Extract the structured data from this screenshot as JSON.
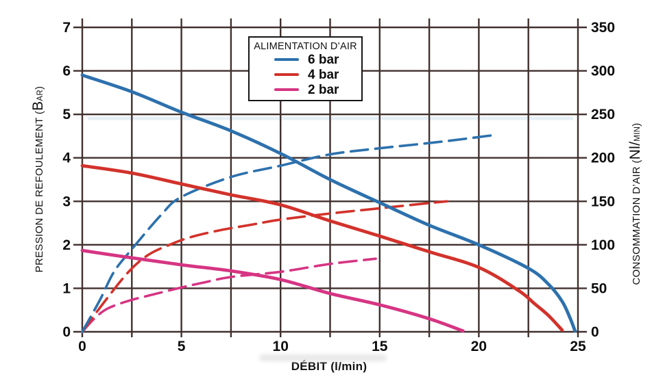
{
  "legend": {
    "title": "ALIMENTATION D’AIR",
    "items": [
      {
        "label": "6 bar",
        "color": "#2d71ad"
      },
      {
        "label": "4 bar",
        "color": "#d2322b"
      },
      {
        "label": "2 bar",
        "color": "#d63583"
      }
    ]
  },
  "axes": {
    "x": {
      "title": "DÉBIT (l/min)",
      "ticks": [
        0,
        5,
        10,
        15,
        20,
        25
      ],
      "minor_step": 2.5,
      "range": [
        0,
        25
      ]
    },
    "left": {
      "title_parts": [
        "PRESSION DE REFOULEMENT (",
        "B",
        "AR",
        ")"
      ],
      "ticks": [
        0,
        1,
        2,
        3,
        4,
        5,
        6,
        7
      ],
      "range": [
        0,
        7
      ]
    },
    "right": {
      "title_parts": [
        "CONSOMMATION D’AIR (",
        "Nl/",
        "MIN",
        ")"
      ],
      "ticks": [
        0,
        50,
        100,
        150,
        200,
        250,
        300,
        350
      ],
      "range": [
        0,
        350
      ]
    }
  },
  "grid_color": "#40302e",
  "chart_data": {
    "type": "line",
    "title": "",
    "xlabel": "DÉBIT (l/min)",
    "ylabel_left": "PRESSION DE REFOULEMENT (BAR)",
    "ylabel_right": "CONSOMMATION D’AIR (Nl/MIN)",
    "xlim": [
      0,
      25
    ],
    "ylim_left": [
      0,
      7
    ],
    "ylim_right": [
      0,
      350
    ],
    "grid": true,
    "legend_position": "top-center",
    "series": [
      {
        "id": "2bar-air",
        "name": "2 bar",
        "quantity": "consommation d'air",
        "unit": "Nl/min",
        "axis": "right",
        "style": "dashed",
        "color": "#d63583",
        "points": [
          [
            0,
            0
          ],
          [
            0.6,
            15
          ],
          [
            1.3,
            27
          ],
          [
            2.4,
            36
          ],
          [
            3.6,
            43
          ],
          [
            5,
            51
          ],
          [
            6,
            56
          ],
          [
            7.5,
            63
          ],
          [
            10,
            69
          ],
          [
            12.5,
            78
          ],
          [
            14.8,
            84
          ]
        ]
      },
      {
        "id": "4bar-air",
        "name": "4 bar",
        "quantity": "consommation d'air",
        "unit": "Nl/min",
        "axis": "right",
        "style": "dashed",
        "color": "#d2322b",
        "points": [
          [
            0,
            0
          ],
          [
            1,
            31
          ],
          [
            2.3,
            68
          ],
          [
            3.3,
            88
          ],
          [
            4.4,
            100
          ],
          [
            5.5,
            109
          ],
          [
            7,
            117
          ],
          [
            8.5,
            123
          ],
          [
            10,
            129
          ],
          [
            12.5,
            136
          ],
          [
            15,
            142
          ],
          [
            17.5,
            148
          ],
          [
            18.4,
            150
          ]
        ]
      },
      {
        "id": "6bar-air",
        "name": "6 bar",
        "quantity": "consommation d'air",
        "unit": "Nl/min",
        "axis": "right",
        "style": "dashed",
        "color": "#2d71ad",
        "points": [
          [
            0,
            0
          ],
          [
            0.9,
            37
          ],
          [
            1.6,
            69
          ],
          [
            2.5,
            95
          ],
          [
            4,
            135
          ],
          [
            5,
            155
          ],
          [
            7.5,
            178
          ],
          [
            10,
            191
          ],
          [
            12.5,
            204
          ],
          [
            15,
            211
          ],
          [
            17.5,
            217
          ],
          [
            19,
            221
          ],
          [
            20.7,
            226
          ]
        ]
      },
      {
        "id": "2bar-pressure",
        "name": "2 bar",
        "quantity": "pression de refoulement",
        "unit": "bar",
        "axis": "left",
        "style": "solid",
        "color": "#d63583",
        "points": [
          [
            0,
            1.87
          ],
          [
            2.5,
            1.7
          ],
          [
            5,
            1.54
          ],
          [
            7.5,
            1.4
          ],
          [
            10,
            1.2
          ],
          [
            12.5,
            0.88
          ],
          [
            15,
            0.62
          ],
          [
            17.5,
            0.3
          ],
          [
            19.2,
            0.02
          ]
        ]
      },
      {
        "id": "4bar-pressure",
        "name": "4 bar",
        "quantity": "pression de refoulement",
        "unit": "bar",
        "axis": "left",
        "style": "solid",
        "color": "#d2322b",
        "points": [
          [
            0,
            3.82
          ],
          [
            2.5,
            3.65
          ],
          [
            5,
            3.4
          ],
          [
            7.5,
            3.15
          ],
          [
            10,
            2.92
          ],
          [
            12.5,
            2.55
          ],
          [
            15,
            2.2
          ],
          [
            17.5,
            1.84
          ],
          [
            20,
            1.48
          ],
          [
            22,
            0.95
          ],
          [
            22.8,
            0.65
          ],
          [
            23.5,
            0.38
          ],
          [
            24.2,
            0.04
          ]
        ]
      },
      {
        "id": "6bar-pressure",
        "name": "6 bar",
        "quantity": "pression de refoulement",
        "unit": "bar",
        "axis": "left",
        "style": "solid",
        "color": "#2d71ad",
        "points": [
          [
            0,
            5.9
          ],
          [
            2.5,
            5.52
          ],
          [
            5,
            5.05
          ],
          [
            7.5,
            4.62
          ],
          [
            10,
            4.1
          ],
          [
            12.5,
            3.5
          ],
          [
            15,
            2.97
          ],
          [
            17.5,
            2.45
          ],
          [
            20,
            2.0
          ],
          [
            22.5,
            1.46
          ],
          [
            23.5,
            1.1
          ],
          [
            24.2,
            0.7
          ],
          [
            24.6,
            0.32
          ],
          [
            24.85,
            0.02
          ]
        ]
      }
    ]
  }
}
